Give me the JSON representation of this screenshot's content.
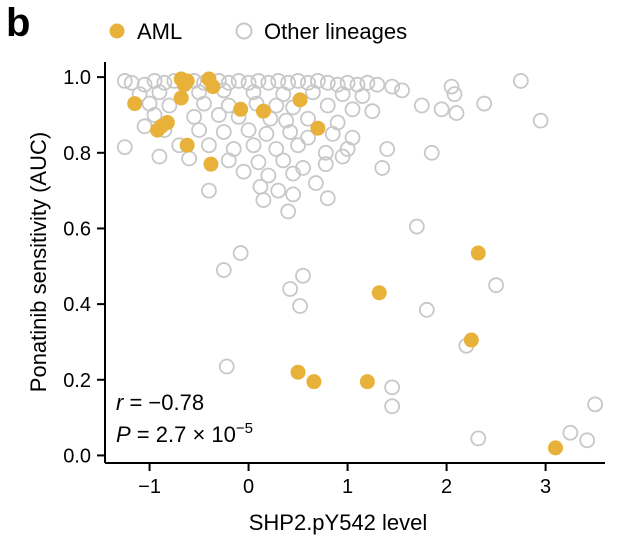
{
  "panel_label": "b",
  "chart_data": {
    "type": "scatter",
    "xlabel": "SHP2.pY542 level",
    "ylabel": "Ponatinib sensitivity (AUC)",
    "xlim": [
      -1.45,
      3.6
    ],
    "ylim": [
      -0.02,
      1.04
    ],
    "x_ticks": [
      -1,
      0,
      1,
      2,
      3
    ],
    "x_tick_labels": [
      "−1",
      "0",
      "1",
      "2",
      "3"
    ],
    "y_ticks": [
      0.0,
      0.2,
      0.4,
      0.6,
      0.8,
      1.0
    ],
    "y_tick_labels": [
      "0.0",
      "0.2",
      "0.4",
      "0.6",
      "0.8",
      "1.0"
    ],
    "grid": false,
    "legend_position": "top",
    "annotations": {
      "r_label": "r",
      "r_value": " = −0.78",
      "p_label": "P",
      "p_value": " = 2.7 × 10",
      "p_exponent": "−5"
    },
    "series": [
      {
        "name": "AML",
        "color": "#e8b23a",
        "marker": "filled-circle",
        "points": [
          [
            -1.15,
            0.93
          ],
          [
            -0.88,
            0.87
          ],
          [
            -0.82,
            0.88
          ],
          [
            -0.92,
            0.86
          ],
          [
            -0.68,
            0.995
          ],
          [
            -0.62,
            0.99
          ],
          [
            -0.65,
            0.98
          ],
          [
            -0.4,
            0.995
          ],
          [
            -0.36,
            0.975
          ],
          [
            -0.68,
            0.945
          ],
          [
            -0.62,
            0.82
          ],
          [
            -0.38,
            0.77
          ],
          [
            -0.08,
            0.915
          ],
          [
            0.15,
            0.91
          ],
          [
            0.52,
            0.94
          ],
          [
            0.7,
            0.865
          ],
          [
            2.32,
            0.535
          ],
          [
            1.32,
            0.43
          ],
          [
            2.25,
            0.305
          ],
          [
            0.5,
            0.22
          ],
          [
            0.66,
            0.195
          ],
          [
            1.2,
            0.195
          ],
          [
            3.1,
            0.02
          ]
        ]
      },
      {
        "name": "Other lineages",
        "color": "#c8c8c8",
        "marker": "open-circle",
        "points": [
          [
            -1.25,
            0.99
          ],
          [
            -1.18,
            0.985
          ],
          [
            -1.05,
            0.98
          ],
          [
            -0.95,
            0.99
          ],
          [
            -0.85,
            0.985
          ],
          [
            -0.75,
            0.99
          ],
          [
            -0.55,
            0.99
          ],
          [
            -0.45,
            0.985
          ],
          [
            -0.3,
            0.99
          ],
          [
            -0.2,
            0.985
          ],
          [
            -0.1,
            0.99
          ],
          [
            0.0,
            0.985
          ],
          [
            0.1,
            0.99
          ],
          [
            0.2,
            0.985
          ],
          [
            0.3,
            0.99
          ],
          [
            0.4,
            0.985
          ],
          [
            0.5,
            0.99
          ],
          [
            0.6,
            0.985
          ],
          [
            0.7,
            0.99
          ],
          [
            0.8,
            0.985
          ],
          [
            0.9,
            0.98
          ],
          [
            1.0,
            0.985
          ],
          [
            1.1,
            0.98
          ],
          [
            1.2,
            0.985
          ],
          [
            1.3,
            0.98
          ],
          [
            1.45,
            0.975
          ],
          [
            -1.1,
            0.955
          ],
          [
            -0.9,
            0.96
          ],
          [
            -0.5,
            0.96
          ],
          [
            -0.25,
            0.965
          ],
          [
            0.05,
            0.96
          ],
          [
            0.35,
            0.955
          ],
          [
            0.65,
            0.96
          ],
          [
            0.95,
            0.955
          ],
          [
            1.15,
            0.95
          ],
          [
            -1.0,
            0.93
          ],
          [
            -0.8,
            0.925
          ],
          [
            -0.45,
            0.93
          ],
          [
            -0.2,
            0.925
          ],
          [
            0.08,
            0.93
          ],
          [
            0.28,
            0.925
          ],
          [
            0.45,
            0.92
          ],
          [
            0.8,
            0.925
          ],
          [
            1.05,
            0.915
          ],
          [
            1.25,
            0.91
          ],
          [
            -0.95,
            0.9
          ],
          [
            -0.55,
            0.895
          ],
          [
            -0.3,
            0.9
          ],
          [
            -0.1,
            0.895
          ],
          [
            0.22,
            0.89
          ],
          [
            0.38,
            0.885
          ],
          [
            0.6,
            0.89
          ],
          [
            0.9,
            0.88
          ],
          [
            -0.85,
            0.86
          ],
          [
            -0.5,
            0.86
          ],
          [
            -0.25,
            0.855
          ],
          [
            0.0,
            0.86
          ],
          [
            0.18,
            0.85
          ],
          [
            0.42,
            0.855
          ],
          [
            0.6,
            0.84
          ],
          [
            0.85,
            0.85
          ],
          [
            1.05,
            0.84
          ],
          [
            -0.7,
            0.82
          ],
          [
            -0.4,
            0.82
          ],
          [
            -0.15,
            0.81
          ],
          [
            0.05,
            0.82
          ],
          [
            0.28,
            0.81
          ],
          [
            0.5,
            0.82
          ],
          [
            0.78,
            0.8
          ],
          [
            1.0,
            0.81
          ],
          [
            -0.9,
            0.79
          ],
          [
            -0.6,
            0.785
          ],
          [
            -0.2,
            0.78
          ],
          [
            0.1,
            0.775
          ],
          [
            0.35,
            0.78
          ],
          [
            0.55,
            0.76
          ],
          [
            0.78,
            0.77
          ],
          [
            0.95,
            0.79
          ],
          [
            -0.05,
            0.75
          ],
          [
            0.2,
            0.74
          ],
          [
            0.45,
            0.745
          ],
          [
            0.68,
            0.72
          ],
          [
            0.12,
            0.71
          ],
          [
            0.3,
            0.7
          ],
          [
            0.45,
            0.69
          ],
          [
            0.15,
            0.675
          ],
          [
            0.4,
            0.645
          ],
          [
            0.8,
            0.68
          ],
          [
            -0.4,
            0.7
          ],
          [
            -1.25,
            0.815
          ],
          [
            -1.05,
            0.87
          ],
          [
            1.35,
            0.76
          ],
          [
            1.55,
            0.965
          ],
          [
            1.75,
            0.925
          ],
          [
            2.05,
            0.975
          ],
          [
            2.08,
            0.955
          ],
          [
            1.95,
            0.915
          ],
          [
            2.1,
            0.905
          ],
          [
            2.38,
            0.93
          ],
          [
            2.75,
            0.99
          ],
          [
            2.95,
            0.885
          ],
          [
            1.85,
            0.8
          ],
          [
            1.4,
            0.81
          ],
          [
            1.7,
            0.605
          ],
          [
            -0.08,
            0.535
          ],
          [
            -0.25,
            0.49
          ],
          [
            0.42,
            0.44
          ],
          [
            0.55,
            0.475
          ],
          [
            0.52,
            0.395
          ],
          [
            2.5,
            0.45
          ],
          [
            1.8,
            0.385
          ],
          [
            -0.22,
            0.235
          ],
          [
            1.45,
            0.18
          ],
          [
            1.45,
            0.13
          ],
          [
            2.32,
            0.045
          ],
          [
            3.25,
            0.06
          ],
          [
            3.42,
            0.04
          ],
          [
            3.5,
            0.135
          ],
          [
            2.2,
            0.29
          ]
        ]
      }
    ]
  }
}
